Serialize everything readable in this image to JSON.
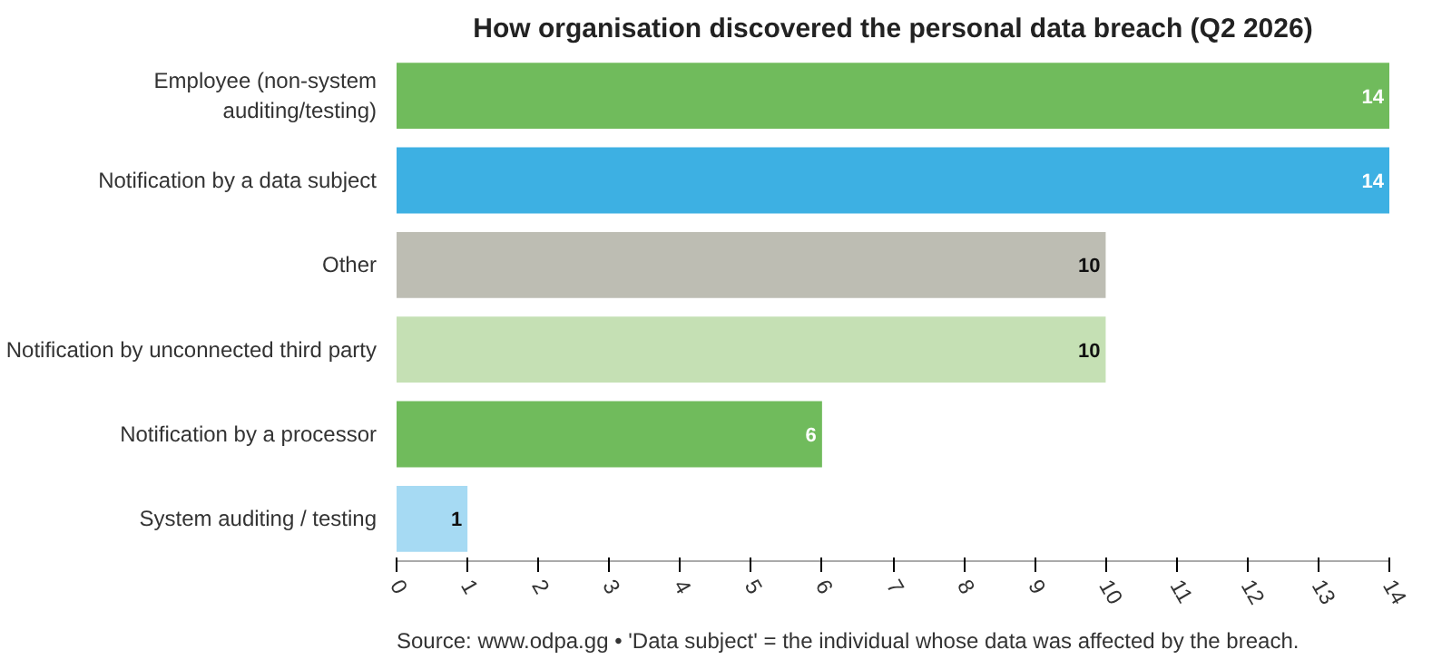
{
  "chart_data": {
    "type": "bar",
    "orientation": "horizontal",
    "title": "How organisation discovered the personal data breach (Q2 2026)",
    "categories": [
      "Employee (non-system\nauditing/testing)",
      "Notification by a data subject",
      "Other",
      "Notification by unconnected third party",
      "Notification by a processor",
      "System auditing / testing"
    ],
    "values": [
      14,
      14,
      10,
      10,
      6,
      1
    ],
    "colors": [
      "#70bb5c",
      "#3db0e3",
      "#bdbdb3",
      "#c5e0b4",
      "#70bb5c",
      "#a6daf3"
    ],
    "xlim": [
      0,
      14
    ],
    "xticks": [
      0,
      1,
      2,
      3,
      4,
      5,
      6,
      7,
      8,
      9,
      10,
      11,
      12,
      13,
      14
    ],
    "data_labels": true,
    "grid": false,
    "annotations": [
      "Source: www.odpa.gg • 'Data subject' = the individual whose data was affected by the breach."
    ]
  }
}
